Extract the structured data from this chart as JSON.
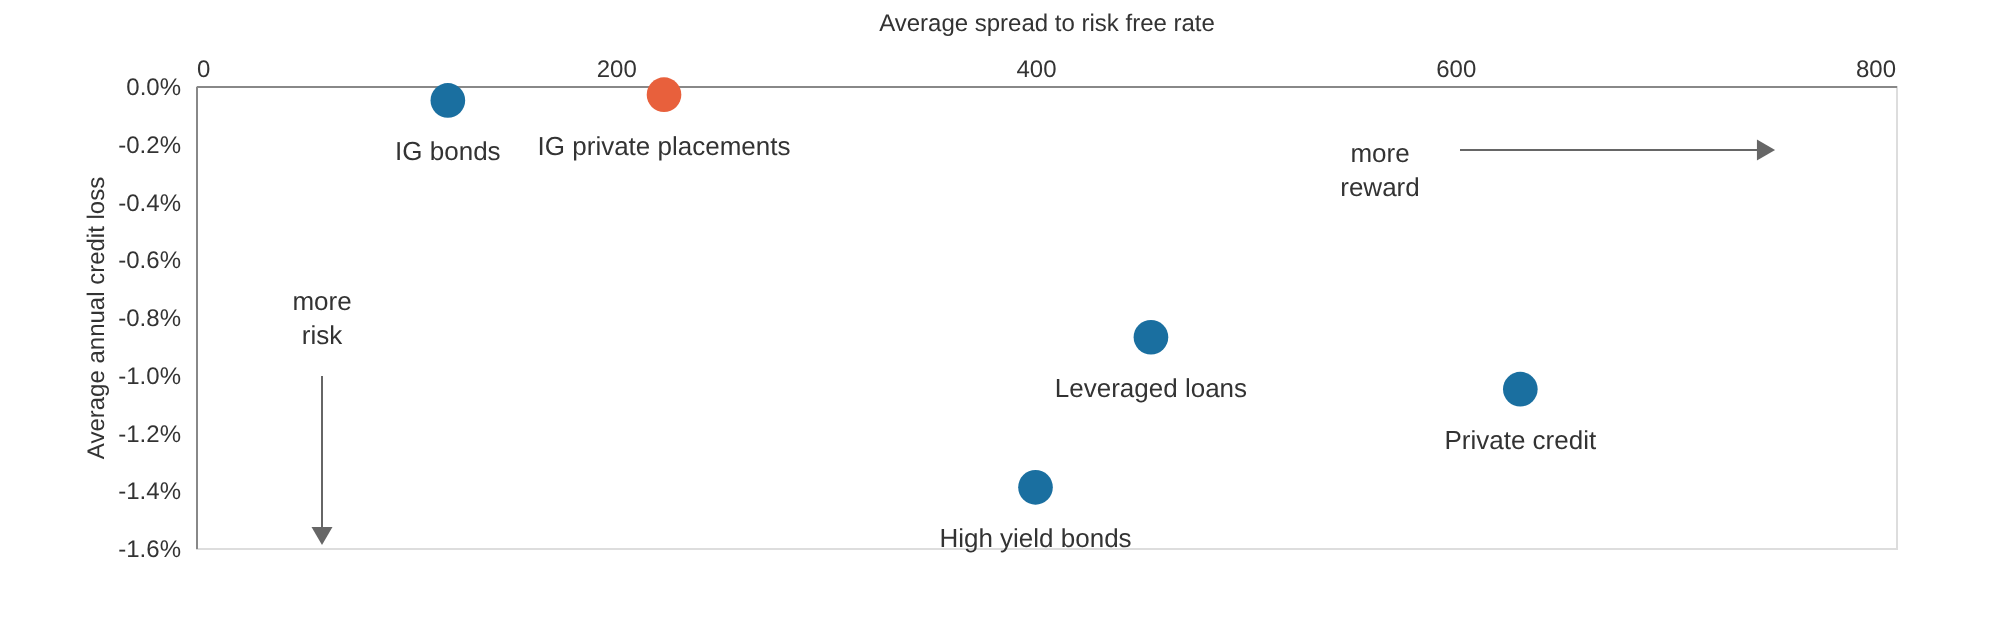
{
  "chart_data": {
    "type": "scatter",
    "xlabel": "Average spread to risk free rate",
    "ylabel": "Average annual credit loss",
    "xlim": [
      0,
      810
    ],
    "xticks": [
      0,
      200,
      400,
      600,
      800
    ],
    "ylim": [
      -1.6,
      0
    ],
    "yticks": [
      {
        "value": 0,
        "label": "0.0%"
      },
      {
        "value": -0.2,
        "label": "-0.2%"
      },
      {
        "value": -0.4,
        "label": "-0.4%"
      },
      {
        "value": -0.6,
        "label": "-0.6%"
      },
      {
        "value": -0.8,
        "label": "-0.8%"
      },
      {
        "value": -1.0,
        "label": "-1.0%"
      },
      {
        "value": -1.2,
        "label": "-1.2%"
      },
      {
        "value": -1.4,
        "label": "-1.4%"
      },
      {
        "value": -1.6,
        "label": "-1.6%"
      }
    ],
    "series": [
      {
        "name": "IG bonds",
        "color": "#1a6fa0",
        "x": [
          120
        ],
        "values": [
          -0.05
        ]
      },
      {
        "name": "IG private placements",
        "color": "#e8603c",
        "x": [
          223
        ],
        "values": [
          -0.03
        ]
      },
      {
        "name": "Leveraged loans",
        "color": "#1a6fa0",
        "x": [
          455
        ],
        "values": [
          -0.87
        ]
      },
      {
        "name": "High yield bonds",
        "color": "#1a6fa0",
        "x": [
          400
        ],
        "values": [
          -1.39
        ]
      },
      {
        "name": "Private credit",
        "color": "#1a6fa0",
        "x": [
          631
        ],
        "values": [
          -1.05
        ]
      }
    ],
    "annotations": [
      "more\nreward",
      "more\nrisk"
    ],
    "grid": false,
    "legend": false,
    "marker": "circle"
  }
}
